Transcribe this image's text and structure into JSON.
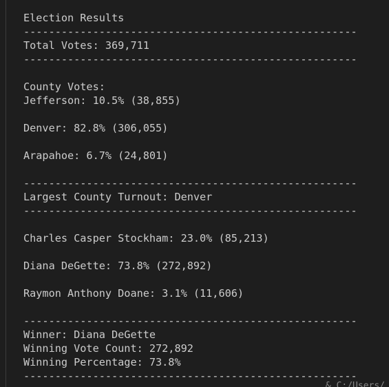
{
  "terminal": {
    "lines": [
      "Election Results",
      "-----------------------------------------------------",
      "Total Votes: 369,711",
      "-----------------------------------------------------",
      "",
      "County Votes:",
      "Jefferson: 10.5% (38,855)",
      "",
      "Denver: 82.8% (306,055)",
      "",
      "Arapahoe: 6.7% (24,801)",
      "",
      "-----------------------------------------------------",
      "Largest County Turnout: Denver",
      "-----------------------------------------------------",
      "",
      "Charles Casper Stockham: 23.0% (85,213)",
      "",
      "Diana DeGette: 73.8% (272,892)",
      "",
      "Raymon Anthony Doane: 3.1% (11,606)",
      "",
      "-----------------------------------------------------",
      "Winner: Diana DeGette",
      "Winning Vote Count: 272,892",
      "Winning Percentage: 73.8%",
      "-----------------------------------------------------"
    ],
    "footer_fragment": "& C:/Users/"
  }
}
